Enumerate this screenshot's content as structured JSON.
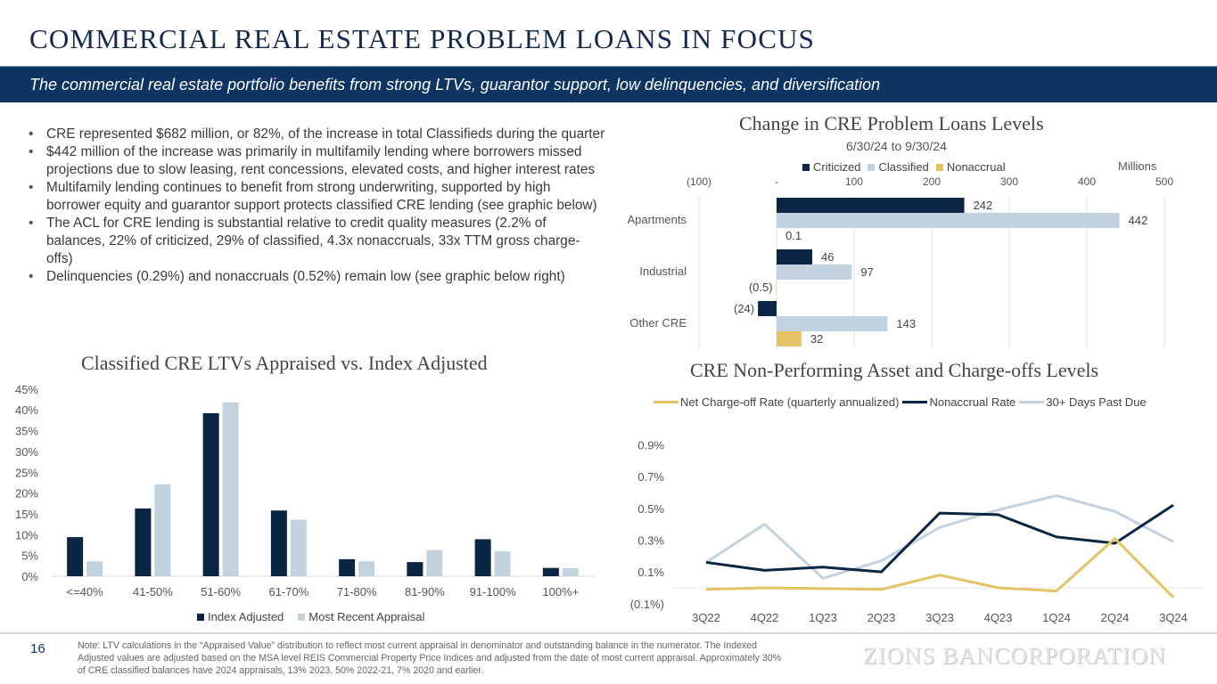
{
  "header": {
    "title": "COMMERCIAL REAL ESTATE PROBLEM LOANS IN FOCUS",
    "subtitle": "The commercial real estate portfolio benefits from strong LTVs, guarantor support, low delinquencies, and diversification"
  },
  "bullets": [
    "CRE represented $682 million, or 82%, of the increase in total Classifieds during the quarter",
    "$442 million of the increase was primarily in multifamily lending where borrowers missed projections due to slow leasing, rent concessions, elevated costs, and higher interest rates",
    "Multifamily lending continues to benefit from strong underwriting, supported by high borrower equity and guarantor support protects classified CRE lending (see graphic below)",
    "The ACL for CRE lending is substantial relative to credit quality measures (2.2% of balances, 22% of criticized, 29% of classified, 4.3x nonaccruals, 33x TTM gross charge-offs)",
    "Delinquencies (0.29%) and nonaccruals (0.52%) remain low (see graphic below right)"
  ],
  "colors": {
    "navy": "#0b2545",
    "light_blue": "#c2d2de",
    "gold": "#e6c266",
    "banner": "#0d3463",
    "title": "#13294b"
  },
  "footer": {
    "page_number": "16",
    "note": "Note: LTV calculations in the “Appraised Value” distribution to reflect most current appraisal in denominator and outstanding balance in the numerator. The Indexed Adjusted values are adjusted based on the MSA level REIS Commercial Property Price Indices and adjusted from the date of most current appraisal. Approximately 30% of CRE classified balances have 2024 appraisals, 13% 2023, 50% 2022-21, 7% 2020 and earlier.",
    "brand": "ZIONS BANCORPORATION"
  },
  "chart_data": [
    {
      "id": "problem-loans",
      "type": "bar",
      "orientation": "horizontal",
      "title": "Change in CRE Problem Loans Levels",
      "subtitle": "6/30/24 to 9/30/24",
      "unit_label": "Millions",
      "categories": [
        "Apartments",
        "Industrial",
        "Other CRE"
      ],
      "series": [
        {
          "name": "Criticized",
          "values": [
            242,
            46,
            -24
          ],
          "labels": [
            "242",
            "46",
            "(24)"
          ]
        },
        {
          "name": "Classified",
          "values": [
            442,
            97,
            143
          ],
          "labels": [
            "442",
            "97",
            "143"
          ]
        },
        {
          "name": "Nonaccrual",
          "values": [
            0.1,
            -0.5,
            32
          ],
          "labels": [
            "0.1",
            "(0.5)",
            "32"
          ]
        }
      ],
      "xlim": [
        -100,
        500
      ],
      "xticks": [
        -100,
        0,
        100,
        200,
        300,
        400,
        500
      ],
      "xtick_labels": [
        "(100)",
        "-",
        "100",
        "200",
        "300",
        "400",
        "500"
      ],
      "grid": true,
      "legend": "top"
    },
    {
      "id": "ltv",
      "type": "bar",
      "title": "Classified CRE LTVs Appraised vs. Index Adjusted",
      "categories": [
        "<=40%",
        "41-50%",
        "51-60%",
        "61-70%",
        "71-80%",
        "81-90%",
        "91-100%",
        "100%+"
      ],
      "series": [
        {
          "name": "Index Adjusted",
          "values": [
            9.4,
            16.3,
            39.2,
            15.8,
            4.1,
            3.4,
            8.9,
            2.0
          ]
        },
        {
          "name": "Most Recent Appraisal",
          "values": [
            3.6,
            22.1,
            41.8,
            13.6,
            3.6,
            6.3,
            6.0,
            1.9
          ]
        }
      ],
      "ylim": [
        0,
        45
      ],
      "yticks": [
        0,
        5,
        10,
        15,
        20,
        25,
        30,
        35,
        40,
        45
      ],
      "ytick_labels": [
        "0%",
        "5%",
        "10%",
        "15%",
        "20%",
        "25%",
        "30%",
        "35%",
        "40%",
        "45%"
      ],
      "grid": false,
      "legend": "bottom"
    },
    {
      "id": "npa",
      "type": "line",
      "title": "CRE Non-Performing Asset and Charge-offs Levels",
      "x": [
        "3Q22",
        "4Q22",
        "1Q23",
        "2Q23",
        "3Q23",
        "4Q23",
        "1Q24",
        "2Q24",
        "3Q24"
      ],
      "series": [
        {
          "name": "Net Charge-off Rate (quarterly annualized)",
          "values": [
            -0.01,
            0.0,
            -0.005,
            -0.01,
            0.08,
            0.0,
            -0.02,
            0.31,
            -0.06
          ]
        },
        {
          "name": "Nonaccrual Rate",
          "values": [
            0.16,
            0.11,
            0.13,
            0.1,
            0.47,
            0.46,
            0.32,
            0.28,
            0.52
          ]
        },
        {
          "name": "30+ Days Past Due",
          "values": [
            0.16,
            0.4,
            0.06,
            0.17,
            0.38,
            0.49,
            0.58,
            0.48,
            0.29
          ]
        }
      ],
      "ylim": [
        -0.1,
        0.9
      ],
      "yticks": [
        -0.1,
        0.1,
        0.3,
        0.5,
        0.7,
        0.9
      ],
      "ytick_labels": [
        "(0.1%)",
        "0.1%",
        "0.3%",
        "0.5%",
        "0.7%",
        "0.9%"
      ],
      "grid": false,
      "legend": "top"
    }
  ]
}
